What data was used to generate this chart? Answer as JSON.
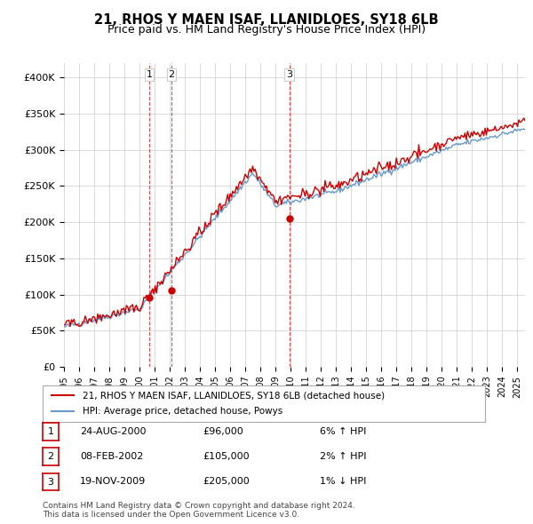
{
  "title": "21, RHOS Y MAEN ISAF, LLANIDLOES, SY18 6LB",
  "subtitle": "Price paid vs. HM Land Registry's House Price Index (HPI)",
  "ylabel_ticks": [
    "£0",
    "£50K",
    "£100K",
    "£150K",
    "£200K",
    "£250K",
    "£300K",
    "£350K",
    "£400K"
  ],
  "ytick_values": [
    0,
    50000,
    100000,
    150000,
    200000,
    250000,
    300000,
    350000,
    400000
  ],
  "ylim": [
    0,
    420000
  ],
  "xlim_start": 1995.0,
  "xlim_end": 2025.5,
  "sale_color": "#cc0000",
  "hpi_color": "#6699cc",
  "sale_points": [
    {
      "year": 2000.65,
      "price": 96000,
      "label": "1"
    },
    {
      "year": 2002.1,
      "price": 105000,
      "label": "2"
    },
    {
      "year": 2009.9,
      "price": 205000,
      "label": "3"
    }
  ],
  "vline_years": [
    2000.65,
    2002.1,
    2009.9
  ],
  "legend_sale_label": "21, RHOS Y MAEN ISAF, LLANIDLOES, SY18 6LB (detached house)",
  "legend_hpi_label": "HPI: Average price, detached house, Powys",
  "table_rows": [
    {
      "num": "1",
      "date": "24-AUG-2000",
      "price": "£96,000",
      "change": "6% ↑ HPI"
    },
    {
      "num": "2",
      "date": "08-FEB-2002",
      "price": "£105,000",
      "change": "2% ↑ HPI"
    },
    {
      "num": "3",
      "date": "19-NOV-2009",
      "price": "£205,000",
      "change": "1% ↓ HPI"
    }
  ],
  "footnote": "Contains HM Land Registry data © Crown copyright and database right 2024.\nThis data is licensed under the Open Government Licence v3.0.",
  "background_color": "#ffffff",
  "grid_color": "#cccccc"
}
